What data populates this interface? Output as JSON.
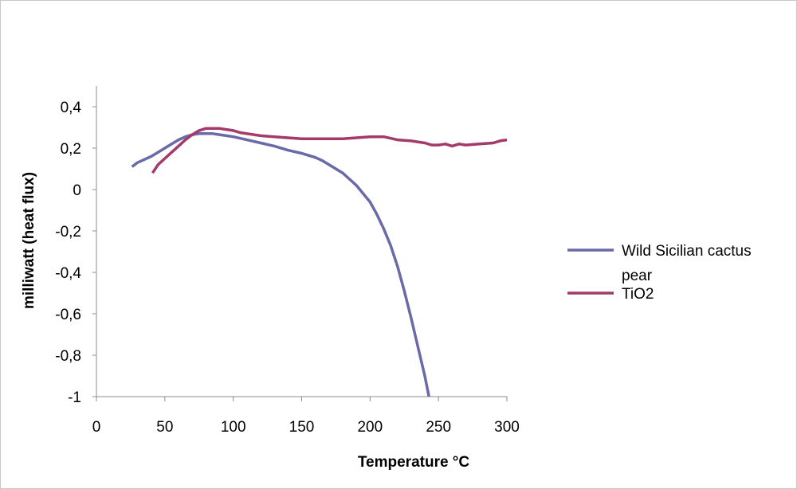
{
  "chart_data": {
    "type": "line",
    "title": "",
    "xlabel": "Temperature °C",
    "ylabel": "milliwatt (heat flux)",
    "xlim": [
      0,
      300
    ],
    "ylim": [
      -1,
      0.4
    ],
    "xticks": [
      0,
      50,
      100,
      150,
      200,
      250,
      300
    ],
    "yticks": [
      0.4,
      0.2,
      0,
      -0.2,
      -0.4,
      -0.6,
      -0.8,
      -1
    ],
    "xtick_labels": [
      "0",
      "50",
      "100",
      "150",
      "200",
      "250",
      "300"
    ],
    "ytick_labels": [
      "0,4",
      "0,2",
      "0",
      "-0,2",
      "-0,4",
      "-0,6",
      "-0,8",
      "-1"
    ],
    "grid": false,
    "legend_position": "right",
    "series": [
      {
        "name": "Wild Sicilian cactus pear",
        "name_lines": [
          "Wild Sicilian cactus",
          "pear"
        ],
        "color": "#6a6aa8",
        "points": [
          [
            26,
            0.11
          ],
          [
            30,
            0.13
          ],
          [
            35,
            0.145
          ],
          [
            40,
            0.16
          ],
          [
            45,
            0.18
          ],
          [
            50,
            0.2
          ],
          [
            55,
            0.22
          ],
          [
            60,
            0.24
          ],
          [
            65,
            0.255
          ],
          [
            70,
            0.265
          ],
          [
            75,
            0.27
          ],
          [
            80,
            0.27
          ],
          [
            85,
            0.27
          ],
          [
            90,
            0.265
          ],
          [
            95,
            0.26
          ],
          [
            100,
            0.255
          ],
          [
            110,
            0.24
          ],
          [
            120,
            0.225
          ],
          [
            130,
            0.21
          ],
          [
            140,
            0.19
          ],
          [
            150,
            0.175
          ],
          [
            160,
            0.155
          ],
          [
            165,
            0.14
          ],
          [
            170,
            0.12
          ],
          [
            175,
            0.1
          ],
          [
            180,
            0.08
          ],
          [
            185,
            0.05
          ],
          [
            190,
            0.02
          ],
          [
            195,
            -0.02
          ],
          [
            200,
            -0.06
          ],
          [
            205,
            -0.12
          ],
          [
            210,
            -0.19
          ],
          [
            215,
            -0.27
          ],
          [
            220,
            -0.37
          ],
          [
            225,
            -0.49
          ],
          [
            230,
            -0.62
          ],
          [
            235,
            -0.76
          ],
          [
            240,
            -0.9
          ],
          [
            243,
            -1.0
          ]
        ]
      },
      {
        "name": "TiO2",
        "name_lines": [
          "TiO2"
        ],
        "color": "#a33a6a",
        "points": [
          [
            41,
            0.08
          ],
          [
            45,
            0.12
          ],
          [
            50,
            0.15
          ],
          [
            55,
            0.18
          ],
          [
            60,
            0.21
          ],
          [
            65,
            0.24
          ],
          [
            70,
            0.265
          ],
          [
            75,
            0.285
          ],
          [
            80,
            0.295
          ],
          [
            85,
            0.295
          ],
          [
            90,
            0.295
          ],
          [
            95,
            0.29
          ],
          [
            100,
            0.285
          ],
          [
            105,
            0.275
          ],
          [
            110,
            0.27
          ],
          [
            120,
            0.26
          ],
          [
            130,
            0.255
          ],
          [
            140,
            0.25
          ],
          [
            150,
            0.245
          ],
          [
            160,
            0.245
          ],
          [
            170,
            0.245
          ],
          [
            180,
            0.245
          ],
          [
            190,
            0.25
          ],
          [
            200,
            0.255
          ],
          [
            210,
            0.255
          ],
          [
            220,
            0.24
          ],
          [
            230,
            0.235
          ],
          [
            240,
            0.225
          ],
          [
            245,
            0.215
          ],
          [
            250,
            0.215
          ],
          [
            255,
            0.22
          ],
          [
            260,
            0.21
          ],
          [
            265,
            0.22
          ],
          [
            270,
            0.215
          ],
          [
            280,
            0.22
          ],
          [
            290,
            0.225
          ],
          [
            295,
            0.235
          ],
          [
            300,
            0.24
          ]
        ]
      }
    ]
  }
}
